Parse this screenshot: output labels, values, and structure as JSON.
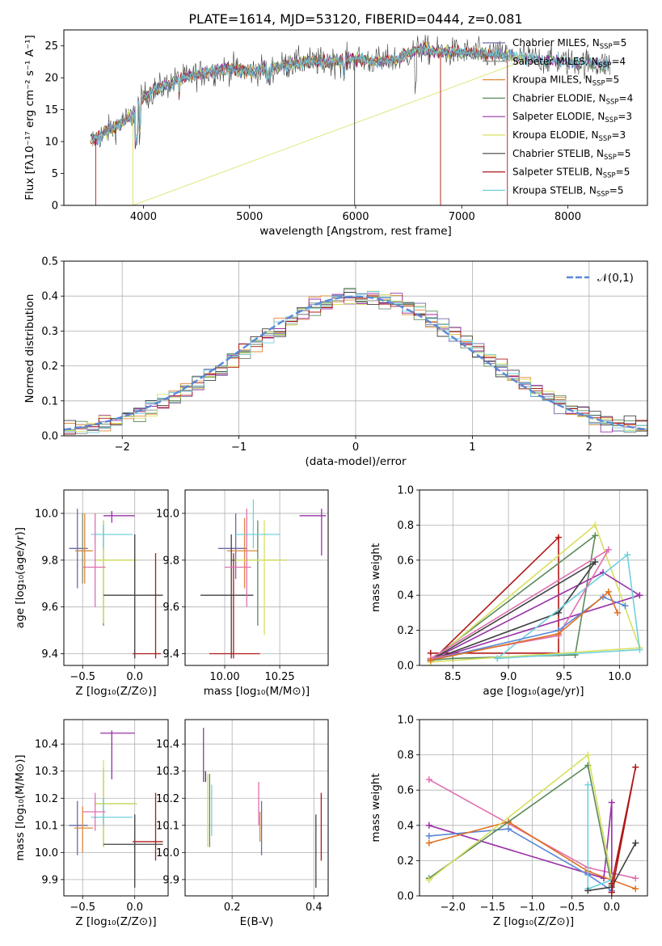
{
  "colors": {
    "Chabrier MILES": "#6a6aa8",
    "Salpeter MILES": "#7a8a7a",
    "Kroupa MILES": "#e08a3a",
    "Chabrier ELODIE": "#5a8a5a",
    "Salpeter ELODIE": "#9a30a8",
    "Kroupa ELODIE": "#d8e060",
    "Chabrier STELIB": "#404040",
    "Salpeter STELIB": "#b01818",
    "Kroupa STELIB": "#70d0e0",
    "extra1": "#5a88d8",
    "extra2": "#e070b0",
    "extra3": "#e07020",
    "grid": "#b0b0b0",
    "normal": "#5a88d8"
  },
  "chart_data": [
    {
      "id": "spectrum",
      "type": "line",
      "title": "PLATE=1614, MJD=53120, FIBERID=0444, z=0.081",
      "xlabel": "wavelength [Angstrom, rest frame]",
      "ylabel": "Flux [fλ10⁻¹⁷ erg cm⁻² s⁻¹ A⁻¹]",
      "xlim": [
        3250,
        8750
      ],
      "ylim": [
        0,
        27.5
      ],
      "xticks": [
        4000,
        5000,
        6000,
        7000,
        8000
      ],
      "yticks": [
        0,
        5,
        10,
        15,
        20,
        25
      ],
      "legend": [
        "Chabrier MILES, N_SSP=5",
        "Salpeter MILES, N_SSP=4",
        "Kroupa MILES, N_SSP=5",
        "Chabrier ELODIE, N_SSP=4",
        "Salpeter ELODIE, N_SSP=3",
        "Kroupa ELODIE, N_SSP=3",
        "Chabrier STELIB, N_SSP=5",
        "Salpeter STELIB, N_SSP=5",
        "Kroupa STELIB, N_SSP=5"
      ],
      "legend_position": "right",
      "anchors_x": [
        3500,
        3700,
        3900,
        4000,
        4100,
        4300,
        4500,
        4800,
        5000,
        5200,
        5500,
        5800,
        6000,
        6200,
        6400,
        6600,
        6800,
        7000,
        7400,
        7800,
        8200,
        8400
      ],
      "anchors_y": [
        10,
        12,
        14,
        17,
        18,
        19.5,
        20.5,
        21.5,
        21,
        21.5,
        22.5,
        22.5,
        23,
        22.5,
        23,
        24.5,
        24,
        24,
        23.5,
        22.8,
        22.3,
        22
      ]
    },
    {
      "id": "residuals",
      "type": "histogram",
      "xlabel": "(data-model)/error",
      "ylabel": "Normed distribution",
      "xlim": [
        -2.5,
        2.5
      ],
      "ylim": [
        0,
        0.5
      ],
      "xticks": [
        -2,
        -1,
        0,
        1,
        2
      ],
      "yticks": [
        0.0,
        0.1,
        0.2,
        0.3,
        0.4,
        0.5
      ],
      "legend": [
        "𝒩(0,1)"
      ],
      "legend_position": "top-right"
    },
    {
      "id": "age_vs_Z",
      "type": "errorbar",
      "xlabel": "Z [log₁₀(Z/Z⊙)]",
      "ylabel": "age  [log₁₀(age/yr)]",
      "xlim": [
        -0.68,
        0.32
      ],
      "ylim": [
        9.35,
        10.1
      ],
      "xticks": [
        -0.5,
        0.0
      ],
      "yticks": [
        9.4,
        9.6,
        9.8,
        10.0
      ],
      "points": [
        {
          "c": "Chabrier MILES",
          "x": -0.55,
          "y": 9.85,
          "xe": [
            -0.63,
            -0.45
          ],
          "ye": [
            9.68,
            10.02
          ]
        },
        {
          "c": "Salpeter MILES",
          "x": -0.5,
          "y": 9.84,
          "xe": [
            -0.57,
            -0.43
          ],
          "ye": [
            9.7,
            10.0
          ]
        },
        {
          "c": "Kroupa MILES",
          "x": -0.48,
          "y": 9.84,
          "xe": [
            -0.56,
            -0.4
          ],
          "ye": [
            9.7,
            10.0
          ]
        },
        {
          "c": "Chabrier ELODIE",
          "x": -0.3,
          "y": 9.8,
          "xe": [
            -0.38,
            0.02
          ],
          "ye": [
            9.52,
            9.97
          ]
        },
        {
          "c": "Salpeter ELODIE",
          "x": -0.22,
          "y": 9.99,
          "xe": [
            -0.3,
            0.0
          ],
          "ye": [
            9.96,
            10.01
          ]
        },
        {
          "c": "Kroupa ELODIE",
          "x": -0.3,
          "y": 9.8,
          "xe": [
            -0.38,
            0.02
          ],
          "ye": [
            9.53,
            9.97
          ]
        },
        {
          "c": "Chabrier STELIB",
          "x": 0.0,
          "y": 9.65,
          "xe": [
            -0.3,
            0.27
          ],
          "ye": [
            9.38,
            9.91
          ]
        },
        {
          "c": "Salpeter STELIB",
          "x": 0.2,
          "y": 9.4,
          "xe": [
            -0.02,
            0.25
          ],
          "ye": [
            9.38,
            9.83
          ]
        },
        {
          "c": "Kroupa STELIB",
          "x": -0.3,
          "y": 9.91,
          "xe": [
            -0.42,
            -0.02
          ],
          "ye": [
            9.85,
            9.95
          ]
        },
        {
          "c": "extra2",
          "x": -0.38,
          "y": 9.77,
          "xe": [
            -0.5,
            -0.28
          ],
          "ye": [
            9.6,
            10.0
          ]
        }
      ]
    },
    {
      "id": "age_vs_mass",
      "type": "errorbar",
      "xlabel": "mass [log₁₀(M/M⊙)]",
      "ylabel": "",
      "xlim": [
        9.82,
        10.47
      ],
      "ylim": [
        9.35,
        10.1
      ],
      "xticks": [
        10.0,
        10.25
      ],
      "yticks": [
        9.4,
        9.6,
        9.8,
        10.0
      ],
      "points": [
        {
          "c": "Chabrier MILES",
          "x": 10.05,
          "y": 9.85,
          "xe": [
            9.97,
            10.1
          ],
          "ye": [
            9.72,
            10.0
          ]
        },
        {
          "c": "Kroupa MILES",
          "x": 10.09,
          "y": 9.84,
          "xe": [
            10.01,
            10.15
          ],
          "ye": [
            9.68,
            9.98
          ]
        },
        {
          "c": "Chabrier ELODIE",
          "x": 10.15,
          "y": 9.8,
          "xe": [
            10.03,
            10.28
          ],
          "ye": [
            9.52,
            9.97
          ]
        },
        {
          "c": "Salpeter ELODIE",
          "x": 10.44,
          "y": 9.99,
          "xe": [
            10.34,
            10.46
          ],
          "ye": [
            9.82,
            10.02
          ]
        },
        {
          "c": "Kroupa ELODIE",
          "x": 10.18,
          "y": 9.8,
          "xe": [
            10.05,
            10.28
          ],
          "ye": [
            9.48,
            9.97
          ]
        },
        {
          "c": "Chabrier STELIB",
          "x": 10.03,
          "y": 9.65,
          "xe": [
            9.89,
            10.13
          ],
          "ye": [
            9.38,
            9.91
          ]
        },
        {
          "c": "Salpeter STELIB",
          "x": 10.04,
          "y": 9.4,
          "xe": [
            9.93,
            10.16
          ],
          "ye": [
            9.38,
            9.83
          ]
        },
        {
          "c": "Kroupa STELIB",
          "x": 10.13,
          "y": 9.91,
          "xe": [
            10.05,
            10.25
          ],
          "ye": [
            9.85,
            10.06
          ]
        },
        {
          "c": "extra2",
          "x": 10.1,
          "y": 9.77,
          "xe": [
            10.0,
            10.12
          ],
          "ye": [
            9.6,
            10.02
          ]
        }
      ]
    },
    {
      "id": "mw_vs_age",
      "type": "line",
      "xlabel": "age  [log₁₀(age/yr)]",
      "ylabel": "mass weight",
      "xlim": [
        8.2,
        10.25
      ],
      "ylim": [
        0,
        1.0
      ],
      "xticks": [
        8.5,
        9.0,
        9.5,
        10.0
      ],
      "yticks": [
        0.0,
        0.2,
        0.4,
        0.6,
        0.8,
        1.0
      ],
      "series": [
        {
          "c": "Salpeter STELIB",
          "x": [
            8.3,
            9.45,
            9.45,
            8.3,
            8.3
          ],
          "y": [
            0.02,
            0.73,
            0.07,
            0.07,
            0.02
          ]
        },
        {
          "c": "Chabrier ELODIE",
          "x": [
            8.3,
            9.78,
            9.6,
            8.5,
            8.3
          ],
          "y": [
            0.03,
            0.74,
            0.06,
            0.04,
            0.03
          ]
        },
        {
          "c": "Kroupa ELODIE",
          "x": [
            8.3,
            9.78,
            10.18,
            8.3
          ],
          "y": [
            0.02,
            0.8,
            0.1,
            0.02
          ]
        },
        {
          "c": "Salpeter ELODIE",
          "x": [
            8.3,
            9.85,
            10.18,
            8.3
          ],
          "y": [
            0.03,
            0.53,
            0.4,
            0.03
          ]
        },
        {
          "c": "Chabrier STELIB",
          "x": [
            8.3,
            9.45,
            9.78,
            8.3
          ],
          "y": [
            0.03,
            0.3,
            0.59,
            0.03
          ]
        },
        {
          "c": "Kroupa STELIB",
          "x": [
            8.9,
            10.07,
            10.18,
            8.9
          ],
          "y": [
            0.04,
            0.63,
            0.09,
            0.04
          ]
        },
        {
          "c": "extra2",
          "x": [
            8.3,
            9.45,
            9.9,
            8.3
          ],
          "y": [
            0.04,
            0.17,
            0.66,
            0.04
          ]
        },
        {
          "c": "extra1",
          "x": [
            8.3,
            9.45,
            9.85,
            10.05
          ],
          "y": [
            0.03,
            0.2,
            0.39,
            0.34
          ]
        },
        {
          "c": "extra3",
          "x": [
            8.3,
            9.45,
            9.9,
            9.98
          ],
          "y": [
            0.03,
            0.18,
            0.42,
            0.3
          ]
        }
      ]
    },
    {
      "id": "mass_vs_Z",
      "type": "errorbar",
      "xlabel": "Z [log₁₀(Z/Z⊙)]",
      "ylabel": "mass [log₁₀(M/M⊙)]",
      "xlim": [
        -0.68,
        0.32
      ],
      "ylim": [
        9.84,
        10.49
      ],
      "xticks": [
        -0.5,
        0.0
      ],
      "yticks": [
        9.9,
        10.0,
        10.1,
        10.2,
        10.3,
        10.4
      ],
      "points": [
        {
          "c": "Chabrier MILES",
          "x": -0.55,
          "y": 10.1,
          "xe": [
            -0.63,
            -0.45
          ],
          "ye": [
            9.99,
            10.19
          ]
        },
        {
          "c": "Kroupa MILES",
          "x": -0.5,
          "y": 10.09,
          "xe": [
            -0.58,
            -0.4
          ],
          "ye": [
            10.0,
            10.17
          ]
        },
        {
          "c": "Chabrier ELODIE",
          "x": -0.3,
          "y": 10.18,
          "xe": [
            -0.38,
            0.02
          ],
          "ye": [
            10.02,
            10.31
          ]
        },
        {
          "c": "Salpeter ELODIE",
          "x": -0.22,
          "y": 10.44,
          "xe": [
            -0.33,
            0.0
          ],
          "ye": [
            10.27,
            10.45
          ]
        },
        {
          "c": "Kroupa ELODIE",
          "x": -0.3,
          "y": 10.18,
          "xe": [
            -0.38,
            0.02
          ],
          "ye": [
            10.02,
            10.34
          ]
        },
        {
          "c": "Chabrier STELIB",
          "x": 0.0,
          "y": 10.03,
          "xe": [
            -0.3,
            0.27
          ],
          "ye": [
            9.87,
            10.14
          ]
        },
        {
          "c": "Salpeter STELIB",
          "x": 0.2,
          "y": 10.04,
          "xe": [
            -0.02,
            0.27
          ],
          "ye": [
            9.97,
            10.22
          ]
        },
        {
          "c": "Kroupa STELIB",
          "x": -0.3,
          "y": 10.13,
          "xe": [
            -0.42,
            -0.02
          ],
          "ye": [
            10.1,
            10.2
          ]
        },
        {
          "c": "extra2",
          "x": -0.38,
          "y": 10.15,
          "xe": [
            -0.5,
            -0.28
          ],
          "ye": [
            10.08,
            10.22
          ]
        }
      ]
    },
    {
      "id": "mass_vs_EBV",
      "type": "errorbar",
      "xlabel": "E(B-V)",
      "ylabel": "",
      "xlim": [
        0.085,
        0.435
      ],
      "ylim": [
        9.84,
        10.49
      ],
      "xticks": [
        0.2,
        0.4
      ],
      "yticks": [
        9.9,
        10.0,
        10.1,
        10.2,
        10.3,
        10.4
      ],
      "points": [
        {
          "c": "Salpeter ELODIE",
          "x": 0.13,
          "y": 10.36,
          "xe": [
            0.13,
            0.13
          ],
          "ye": [
            10.26,
            10.46
          ]
        },
        {
          "c": "Chabrier STELIB",
          "x": 0.135,
          "y": 10.28,
          "xe": [
            0.135,
            0.135
          ],
          "ye": [
            10.26,
            10.3
          ]
        },
        {
          "c": "Kroupa ELODIE",
          "x": 0.14,
          "y": 10.15,
          "xe": [
            0.14,
            0.14
          ],
          "ye": [
            10.02,
            10.29
          ]
        },
        {
          "c": "Chabrier ELODIE",
          "x": 0.145,
          "y": 10.15,
          "xe": [
            0.145,
            0.145
          ],
          "ye": [
            10.02,
            10.29
          ]
        },
        {
          "c": "Kroupa STELIB",
          "x": 0.15,
          "y": 10.15,
          "xe": [
            0.15,
            0.15
          ],
          "ye": [
            10.06,
            10.25
          ]
        },
        {
          "c": "extra2",
          "x": 0.265,
          "y": 10.18,
          "xe": [
            0.265,
            0.265
          ],
          "ye": [
            10.1,
            10.26
          ]
        },
        {
          "c": "Chabrier MILES",
          "x": 0.272,
          "y": 10.1,
          "xe": [
            0.272,
            0.272
          ],
          "ye": [
            9.99,
            10.19
          ]
        },
        {
          "c": "Kroupa MILES",
          "x": 0.268,
          "y": 10.09,
          "xe": [
            0.268,
            0.268
          ],
          "ye": [
            10.04,
            10.15
          ]
        },
        {
          "c": "Chabrier STELIB",
          "x": 0.405,
          "y": 10.0,
          "xe": [
            0.405,
            0.405
          ],
          "ye": [
            9.87,
            10.14
          ]
        },
        {
          "c": "Salpeter STELIB",
          "x": 0.418,
          "y": 10.1,
          "xe": [
            0.418,
            0.418
          ],
          "ye": [
            9.97,
            10.22
          ]
        }
      ]
    },
    {
      "id": "mw_vs_Z",
      "type": "line",
      "xlabel": "Z [log₁₀(Z/Z⊙)]",
      "ylabel": "mass weight",
      "xlim": [
        -2.42,
        0.45
      ],
      "ylim": [
        0,
        1.0
      ],
      "xticks": [
        -2.0,
        -1.5,
        -1.0,
        -0.5,
        0.0
      ],
      "yticks": [
        0.0,
        0.2,
        0.4,
        0.6,
        0.8,
        1.0
      ],
      "series": [
        {
          "c": "extra2",
          "x": [
            -2.3,
            -0.3,
            0.3
          ],
          "y": [
            0.66,
            0.16,
            0.1
          ]
        },
        {
          "c": "Salpeter ELODIE",
          "x": [
            -2.3,
            -0.1,
            0.0,
            0.0
          ],
          "y": [
            0.4,
            0.1,
            0.53,
            0.02
          ]
        },
        {
          "c": "extra1",
          "x": [
            -2.3,
            -1.3,
            -0.3,
            0.0
          ],
          "y": [
            0.34,
            0.38,
            0.12,
            0.03
          ]
        },
        {
          "c": "extra3",
          "x": [
            -2.3,
            -1.3,
            -0.3,
            0.3
          ],
          "y": [
            0.3,
            0.42,
            0.14,
            0.04
          ]
        },
        {
          "c": "Chabrier ELODIE",
          "x": [
            -2.3,
            -0.3,
            0.0
          ],
          "y": [
            0.1,
            0.74,
            0.06
          ]
        },
        {
          "c": "Kroupa ELODIE",
          "x": [
            -2.3,
            -0.3,
            0.0
          ],
          "y": [
            0.09,
            0.8,
            0.1
          ]
        },
        {
          "c": "Kroupa STELIB",
          "x": [
            -0.3,
            -0.3,
            0.0
          ],
          "y": [
            0.63,
            0.04,
            0.09
          ]
        },
        {
          "c": "Chabrier STELIB",
          "x": [
            -0.3,
            0.0,
            0.3
          ],
          "y": [
            0.03,
            0.05,
            0.3
          ]
        },
        {
          "c": "Salpeter STELIB",
          "x": [
            0.0,
            0.3,
            0.0
          ],
          "y": [
            0.02,
            0.73,
            0.07
          ]
        }
      ]
    }
  ]
}
